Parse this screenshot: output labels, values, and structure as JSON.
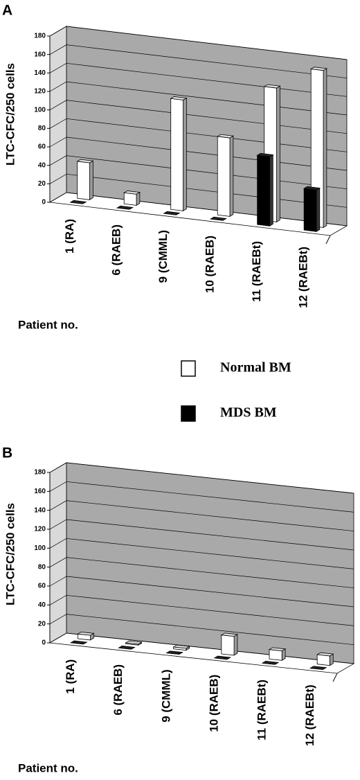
{
  "chart_data": [
    {
      "type": "bar3d",
      "panel": "A",
      "y_label": "LTC-CFC/250 cells",
      "x_label": "Patient no.",
      "categories": [
        "1 (RA)",
        "6 (RAEB)",
        "9 (CMML)",
        "10 (RAEB)",
        "11 (RAEBt)",
        "12 (RAEBt)"
      ],
      "series": [
        {
          "name": "Normal BM",
          "color": "#ffffff",
          "values": [
            40,
            12,
            120,
            85,
            145,
            170
          ]
        },
        {
          "name": "MDS BM",
          "color": "#000000",
          "values": [
            0,
            0,
            0,
            0,
            75,
            45
          ]
        }
      ],
      "ylim": [
        0,
        180
      ],
      "yticks": [
        0,
        20,
        40,
        60,
        80,
        100,
        120,
        140,
        160,
        180
      ],
      "grid": true
    },
    {
      "type": "bar3d",
      "panel": "B",
      "y_label": "LTC-CFC/250 cells",
      "x_label": "Patient no.",
      "categories": [
        "1 (RA)",
        "6 (RAEB)",
        "9 (CMML)",
        "10 (RAEB)",
        "11 (RAEBt)",
        "12 (RAEBt)"
      ],
      "series": [
        {
          "color": "#ffffff",
          "values": [
            5,
            1,
            2,
            20,
            10,
            10
          ]
        },
        {
          "color": "#000000",
          "values": [
            0,
            0,
            0,
            0,
            0,
            0
          ]
        }
      ],
      "ylim": [
        0,
        180
      ],
      "yticks": [
        0,
        20,
        40,
        60,
        80,
        100,
        120,
        140,
        160,
        180
      ],
      "grid": true
    }
  ]
}
